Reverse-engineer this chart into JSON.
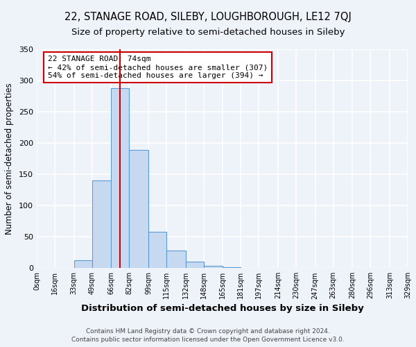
{
  "title1": "22, STANAGE ROAD, SILEBY, LOUGHBOROUGH, LE12 7QJ",
  "title2": "Size of property relative to semi-detached houses in Sileby",
  "xlabel": "Distribution of semi-detached houses by size in Sileby",
  "ylabel": "Number of semi-detached properties",
  "footer1": "Contains HM Land Registry data © Crown copyright and database right 2024.",
  "footer2": "Contains public sector information licensed under the Open Government Licence v3.0.",
  "bin_edges": [
    0,
    16,
    33,
    49,
    66,
    82,
    99,
    115,
    132,
    148,
    165,
    181,
    197,
    214,
    230,
    247,
    263,
    280,
    296,
    313,
    329
  ],
  "bin_labels": [
    "0sqm",
    "16sqm",
    "33sqm",
    "49sqm",
    "66sqm",
    "82sqm",
    "99sqm",
    "115sqm",
    "132sqm",
    "148sqm",
    "165sqm",
    "181sqm",
    "197sqm",
    "214sqm",
    "230sqm",
    "247sqm",
    "263sqm",
    "280sqm",
    "296sqm",
    "313sqm",
    "329sqm"
  ],
  "counts": [
    0,
    0,
    13,
    140,
    288,
    189,
    58,
    28,
    10,
    4,
    1,
    0,
    0,
    0,
    0,
    0,
    0,
    0,
    0,
    0
  ],
  "bar_color": "#c6d9f0",
  "bar_edge_color": "#5b9bd5",
  "property_value": 74,
  "vline_color": "#cc0000",
  "annotation_line1": "22 STANAGE ROAD: 74sqm",
  "annotation_line2": "← 42% of semi-detached houses are smaller (307)",
  "annotation_line3": "54% of semi-detached houses are larger (394) →",
  "annotation_box_color": "white",
  "annotation_box_edge": "#cc0000",
  "ylim": [
    0,
    350
  ],
  "bg_color": "#eef2f9",
  "grid_color": "white",
  "title1_fontsize": 10.5,
  "title2_fontsize": 9.5,
  "xlabel_fontsize": 9.5,
  "ylabel_fontsize": 8.5,
  "annotation_fontsize": 8.0
}
